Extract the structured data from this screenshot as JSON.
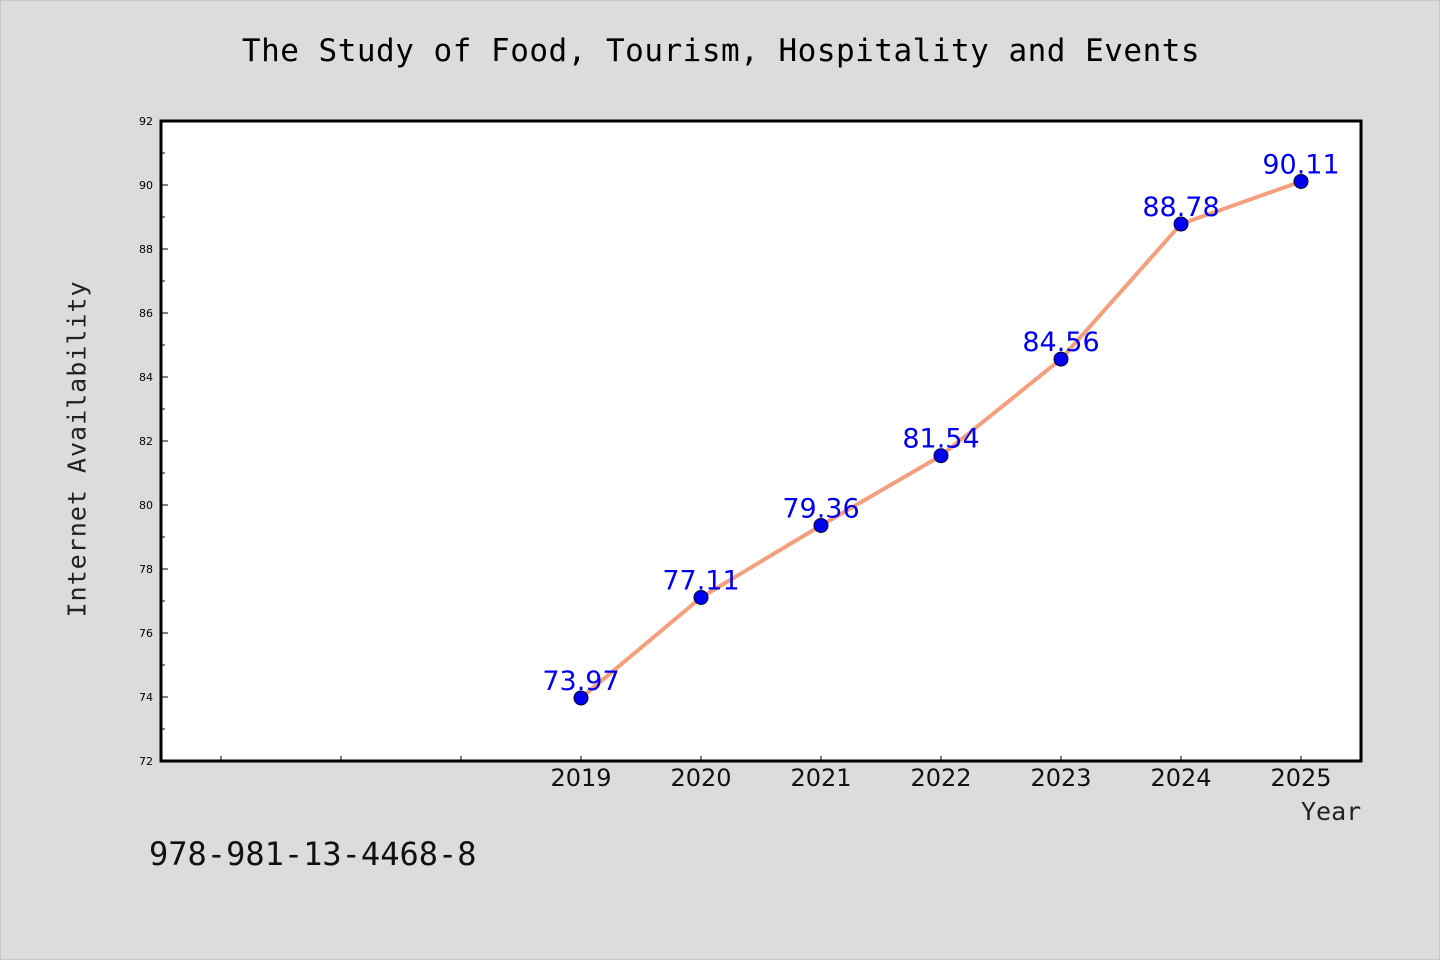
{
  "figure": {
    "background": "#dcdcdc",
    "footer_text": "978-981-13-4468-8"
  },
  "chart_data": {
    "type": "line",
    "title": "The Study of Food, Tourism, Hospitality and Events",
    "xlabel": "Year",
    "ylabel": "Internet Availability",
    "x_categories": [
      "",
      "",
      "",
      "2019",
      "2020",
      "2021",
      "2022",
      "2023",
      "2024",
      "2025"
    ],
    "y_ticks": [
      72,
      74,
      76,
      78,
      80,
      82,
      84,
      86,
      88,
      90,
      92
    ],
    "ylim": [
      72,
      92
    ],
    "grid": false,
    "legend": "none",
    "series": [
      {
        "x": [
          "2019",
          "2020",
          "2021",
          "2022",
          "2023",
          "2024",
          "2025"
        ],
        "values": [
          73.97,
          77.11,
          79.36,
          81.54,
          84.56,
          88.78,
          90.11
        ],
        "labels": [
          "73.97",
          "77.11",
          "79.36",
          "81.54",
          "84.56",
          "88.78",
          "90.11"
        ],
        "line_color": "#f4a07e",
        "marker_color": "#0000ee",
        "label_color": "#0000ee"
      }
    ]
  }
}
